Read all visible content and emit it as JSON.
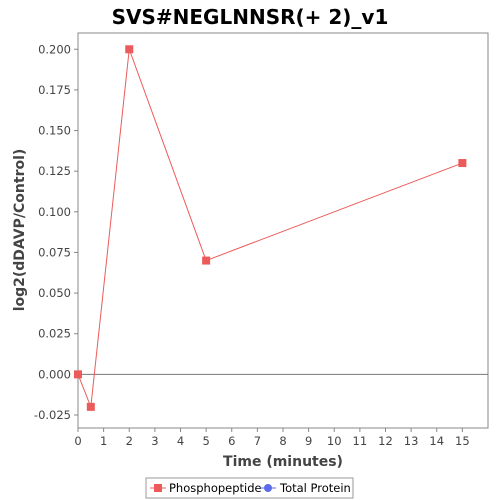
{
  "chart_data": {
    "type": "line",
    "title": "SVS#NEGLNNSR(+ 2)_v1",
    "xlabel": "Time (minutes)",
    "ylabel": "log2(dDAVP/Control)",
    "xlim": [
      0,
      16
    ],
    "ylim": [
      -0.033,
      0.21
    ],
    "x_ticks": [
      0,
      1,
      2,
      3,
      4,
      5,
      6,
      7,
      8,
      9,
      10,
      11,
      12,
      13,
      14,
      15
    ],
    "y_ticks": [
      -0.025,
      0,
      0.025,
      0.05,
      0.075,
      0.1,
      0.125,
      0.15,
      0.175,
      0.2
    ],
    "y_tick_labels": [
      "-0.025",
      "0.000",
      "0.025",
      "0.050",
      "0.075",
      "0.100",
      "0.125",
      "0.150",
      "0.175",
      "0.200"
    ],
    "grid": false,
    "zero_line": true,
    "legend_position": "bottom",
    "series": [
      {
        "name": "Phosphopeptide",
        "color": "#ec5b5b",
        "marker": "square",
        "x": [
          0,
          0.5,
          2,
          5,
          15
        ],
        "y": [
          0.0,
          -0.02,
          0.2,
          0.07,
          0.13
        ]
      },
      {
        "name": "Total Protein",
        "color": "#5b6bec",
        "marker": "circle",
        "x": [],
        "y": []
      }
    ]
  }
}
